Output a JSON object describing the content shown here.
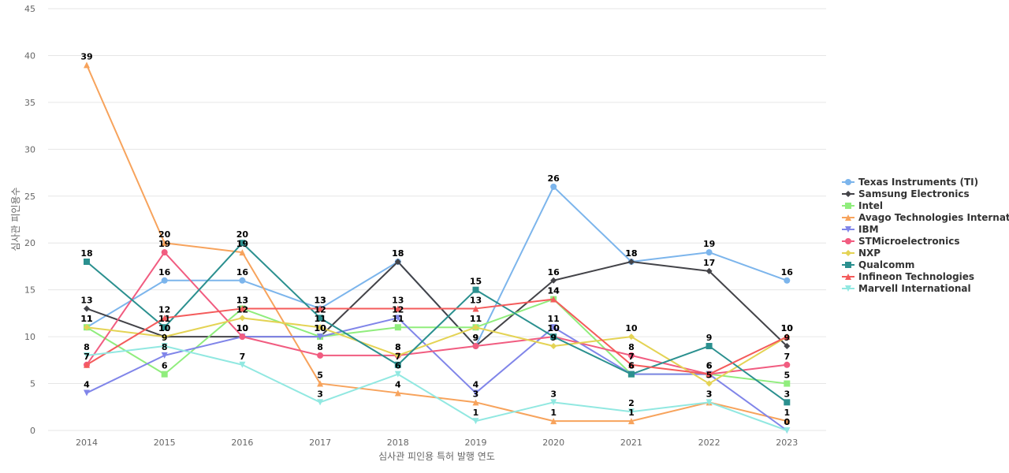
{
  "chart_data": {
    "type": "line",
    "xlabel": "심사관 피인용 특허 발행 연도",
    "ylabel": "심사관 피인용수",
    "categories": [
      "2014",
      "2015",
      "2016",
      "2017",
      "2018",
      "2019",
      "2020",
      "2021",
      "2022",
      "2023"
    ],
    "ylim": [
      0,
      45
    ],
    "yticks": [
      0,
      5,
      10,
      15,
      20,
      25,
      30,
      35,
      40,
      45
    ],
    "grid": true,
    "legend_position": "right",
    "series": [
      {
        "name": "Texas Instruments (TI)",
        "color": "#7cb5ec",
        "marker": "circle",
        "values": [
          11,
          16,
          16,
          13,
          18,
          9,
          26,
          18,
          19,
          16
        ]
      },
      {
        "name": "Samsung Electronics",
        "color": "#434348",
        "marker": "diamond",
        "values": [
          13,
          10,
          10,
          10,
          18,
          9,
          16,
          18,
          17,
          9
        ]
      },
      {
        "name": "Intel",
        "color": "#90ed7d",
        "marker": "square",
        "values": [
          11,
          6,
          13,
          10,
          11,
          11,
          14,
          6,
          6,
          5
        ]
      },
      {
        "name": "Avago Technologies Internat...",
        "color": "#f7a35c",
        "marker": "triangle",
        "values": [
          39,
          20,
          19,
          5,
          4,
          3,
          1,
          1,
          3,
          1
        ]
      },
      {
        "name": "IBM",
        "color": "#8085e9",
        "marker": "triangle-down",
        "values": [
          4,
          8,
          10,
          10,
          12,
          4,
          11,
          6,
          6,
          0
        ]
      },
      {
        "name": "STMicroelectronics",
        "color": "#f15c80",
        "marker": "circle",
        "values": [
          7,
          19,
          10,
          8,
          8,
          9,
          10,
          8,
          6,
          7
        ]
      },
      {
        "name": "NXP",
        "color": "#e4d354",
        "marker": "diamond",
        "values": [
          11,
          10,
          12,
          11,
          8,
          11,
          9,
          10,
          5,
          10
        ]
      },
      {
        "name": "Qualcomm",
        "color": "#2b908f",
        "marker": "square",
        "values": [
          18,
          11,
          20,
          12,
          7,
          15,
          10,
          6,
          9,
          3
        ]
      },
      {
        "name": "Infineon Technologies",
        "color": "#f45b5b",
        "marker": "triangle",
        "values": [
          7,
          12,
          13,
          13,
          13,
          13,
          14,
          7,
          6,
          10
        ]
      },
      {
        "name": "Marvell International",
        "color": "#91e8e1",
        "marker": "triangle-down",
        "values": [
          8,
          9,
          7,
          3,
          6,
          1,
          3,
          2,
          3,
          0
        ]
      }
    ]
  }
}
